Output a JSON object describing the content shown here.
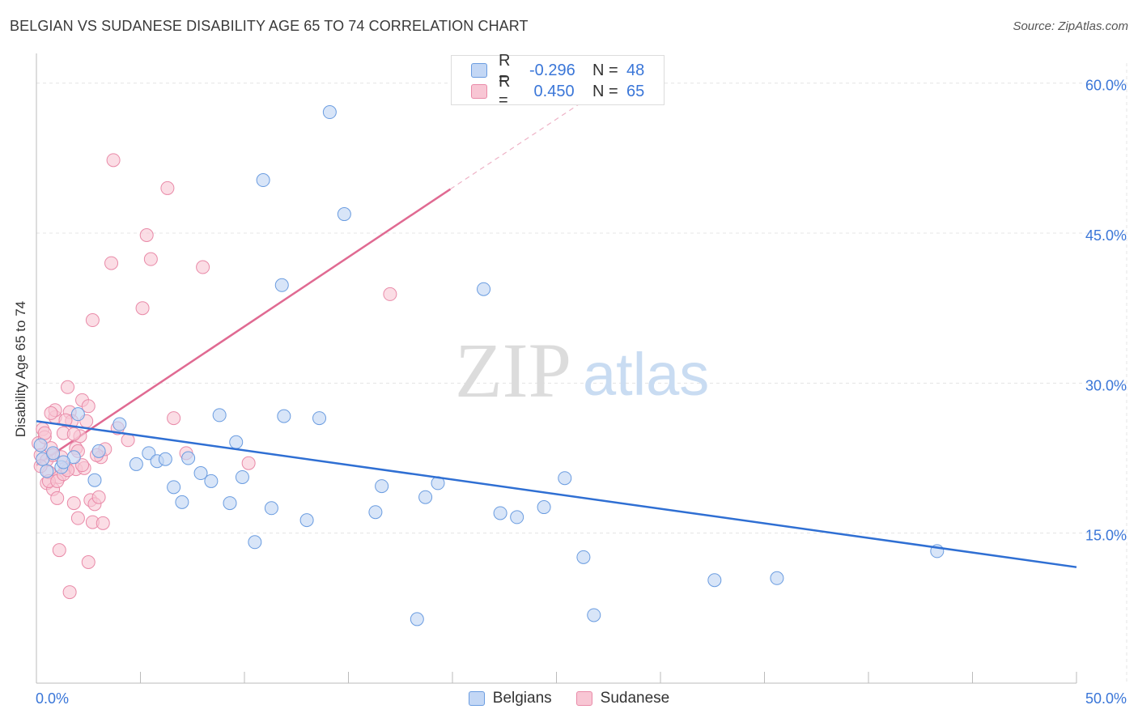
{
  "header": {
    "title": "BELGIAN VS SUDANESE DISABILITY AGE 65 TO 74 CORRELATION CHART",
    "source": "Source: ZipAtlas.com"
  },
  "watermark": {
    "zip": "ZIP",
    "atlas": "atlas"
  },
  "legend": {
    "rows": [
      {
        "r_label": "R =",
        "r_value": "-0.296",
        "n_label": "N =",
        "n_value": "48"
      },
      {
        "r_label": "R =",
        "r_value": " 0.450",
        "n_label": "N =",
        "n_value": "65"
      }
    ],
    "bottom": [
      "Belgians",
      "Sudanese"
    ]
  },
  "colors": {
    "belgian_fill": "#c3d7f5",
    "belgian_stroke": "#6a9ce0",
    "belgian_line": "#2f6fd3",
    "sudanese_fill": "#f8c6d4",
    "sudanese_stroke": "#e98aa8",
    "sudanese_line": "#e06a92",
    "axis_text": "#3a76d8",
    "grid": "#e4e4e4"
  },
  "chart_data": {
    "type": "scatter",
    "title": "BELGIAN VS SUDANESE DISABILITY AGE 65 TO 74 CORRELATION CHART",
    "xlabel": "",
    "ylabel": "Disability Age 65 to 74",
    "xlim": [
      0,
      50
    ],
    "ylim": [
      0,
      62
    ],
    "x_tick_labels": [
      "0.0%",
      "50.0%"
    ],
    "y_ticks": [
      15,
      30,
      45,
      60
    ],
    "y_tick_labels": [
      "15.0%",
      "30.0%",
      "45.0%",
      "60.0%"
    ],
    "grid": true,
    "series": [
      {
        "name": "Belgians",
        "r": -0.296,
        "n": 48,
        "trend": {
          "x": [
            0,
            50
          ],
          "y": [
            26.2,
            11.6
          ]
        },
        "points": [
          [
            0.2,
            23.8
          ],
          [
            0.3,
            22.4
          ],
          [
            0.5,
            21.2
          ],
          [
            0.8,
            23.0
          ],
          [
            1.2,
            21.6
          ],
          [
            1.8,
            22.6
          ],
          [
            2.8,
            20.3
          ],
          [
            2.0,
            26.9
          ],
          [
            4.0,
            25.9
          ],
          [
            4.8,
            21.9
          ],
          [
            5.4,
            23.0
          ],
          [
            5.8,
            22.2
          ],
          [
            6.2,
            22.4
          ],
          [
            6.6,
            19.6
          ],
          [
            7.0,
            18.1
          ],
          [
            7.3,
            22.5
          ],
          [
            7.9,
            21.0
          ],
          [
            8.4,
            20.2
          ],
          [
            8.8,
            26.8
          ],
          [
            9.3,
            18.0
          ],
          [
            9.6,
            24.1
          ],
          [
            9.9,
            20.6
          ],
          [
            10.5,
            14.1
          ],
          [
            10.9,
            50.3
          ],
          [
            11.3,
            17.5
          ],
          [
            11.8,
            39.8
          ],
          [
            11.9,
            26.7
          ],
          [
            13.0,
            16.3
          ],
          [
            13.6,
            26.5
          ],
          [
            14.1,
            57.1
          ],
          [
            14.8,
            46.9
          ],
          [
            16.3,
            17.1
          ],
          [
            16.6,
            19.7
          ],
          [
            18.3,
            6.4
          ],
          [
            18.7,
            18.6
          ],
          [
            19.3,
            20.0
          ],
          [
            21.5,
            39.4
          ],
          [
            22.3,
            17.0
          ],
          [
            23.1,
            16.6
          ],
          [
            24.4,
            17.6
          ],
          [
            25.4,
            20.5
          ],
          [
            26.3,
            12.6
          ],
          [
            26.8,
            6.8
          ],
          [
            32.6,
            10.3
          ],
          [
            35.6,
            10.5
          ],
          [
            43.3,
            13.2
          ],
          [
            1.3,
            22.1
          ],
          [
            3.0,
            23.2
          ]
        ]
      },
      {
        "name": "Sudanese",
        "r": 0.45,
        "n": 65,
        "trend": {
          "x": [
            0,
            19.9
          ],
          "y": [
            21.8,
            49.4
          ]
        },
        "trend_dashed": {
          "x": [
            19.9,
            26.6
          ],
          "y": [
            49.4,
            58.6
          ]
        },
        "points": [
          [
            0.1,
            24.0
          ],
          [
            0.2,
            22.8
          ],
          [
            0.3,
            25.4
          ],
          [
            0.4,
            24.6
          ],
          [
            0.5,
            20.0
          ],
          [
            0.5,
            22.3
          ],
          [
            0.6,
            21.1
          ],
          [
            0.7,
            23.5
          ],
          [
            0.8,
            19.4
          ],
          [
            0.9,
            26.6
          ],
          [
            0.9,
            27.3
          ],
          [
            1.0,
            18.5
          ],
          [
            1.1,
            20.6
          ],
          [
            1.2,
            22.6
          ],
          [
            1.3,
            25.0
          ],
          [
            1.4,
            21.5
          ],
          [
            1.5,
            29.6
          ],
          [
            1.6,
            27.1
          ],
          [
            1.7,
            26.2
          ],
          [
            1.8,
            18.0
          ],
          [
            1.9,
            21.4
          ],
          [
            1.9,
            23.5
          ],
          [
            2.0,
            16.5
          ],
          [
            2.1,
            24.7
          ],
          [
            2.2,
            28.3
          ],
          [
            2.3,
            21.5
          ],
          [
            2.4,
            26.2
          ],
          [
            2.5,
            27.7
          ],
          [
            2.6,
            18.3
          ],
          [
            2.7,
            16.1
          ],
          [
            2.7,
            36.3
          ],
          [
            2.8,
            17.9
          ],
          [
            3.0,
            18.6
          ],
          [
            3.1,
            22.6
          ],
          [
            3.2,
            16.0
          ],
          [
            3.3,
            23.4
          ],
          [
            3.6,
            42.0
          ],
          [
            3.7,
            52.3
          ],
          [
            3.9,
            25.5
          ],
          [
            4.4,
            24.3
          ],
          [
            5.1,
            37.5
          ],
          [
            5.3,
            44.8
          ],
          [
            5.5,
            42.4
          ],
          [
            6.3,
            49.5
          ],
          [
            6.6,
            26.5
          ],
          [
            7.2,
            23.0
          ],
          [
            8.0,
            41.6
          ],
          [
            10.2,
            22.0
          ],
          [
            17.0,
            38.9
          ],
          [
            0.2,
            21.7
          ],
          [
            0.4,
            25.0
          ],
          [
            0.6,
            20.2
          ],
          [
            0.7,
            27.0
          ],
          [
            0.8,
            22.8
          ],
          [
            1.0,
            20.2
          ],
          [
            1.1,
            13.3
          ],
          [
            1.3,
            20.9
          ],
          [
            1.5,
            21.3
          ],
          [
            1.6,
            9.1
          ],
          [
            1.8,
            24.9
          ],
          [
            2.0,
            23.2
          ],
          [
            2.2,
            21.8
          ],
          [
            2.5,
            12.1
          ],
          [
            2.9,
            22.8
          ],
          [
            1.4,
            26.3
          ]
        ]
      }
    ]
  }
}
